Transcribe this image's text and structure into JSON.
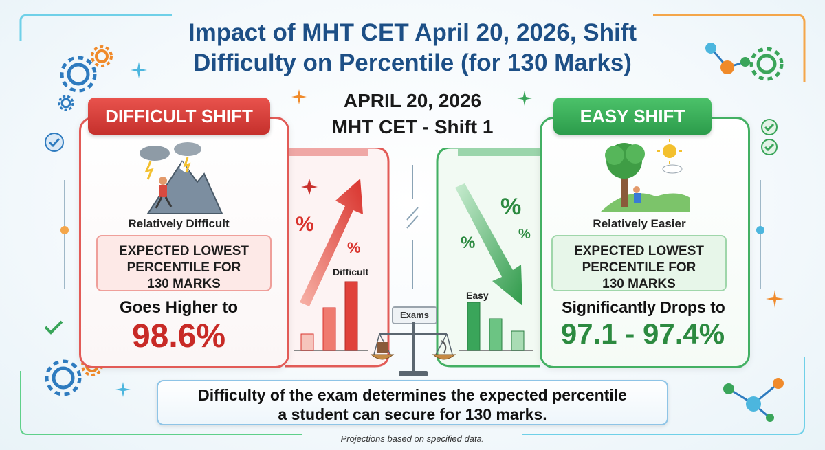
{
  "title": {
    "line1": "Impact of MHT CET April 20, 2026, Shift",
    "line2": "Difficulty on Percentile (for 130 Marks)"
  },
  "header": {
    "date": "APRIL 20, 2026",
    "shift": "MHT CET - Shift 1"
  },
  "difficult": {
    "ribbon": "DIFFICULT SHIFT",
    "level": "Relatively Difficult",
    "box_line1": "EXPECTED LOWEST",
    "box_line2": "PERCENTILE FOR",
    "box_line3": "130 MARKS",
    "trend": "Goes Higher to",
    "value": "98.6%",
    "chart_label": "Difficult",
    "percent_symbol": "%"
  },
  "easy": {
    "ribbon": "EASY SHIFT",
    "level": "Relatively Easier",
    "box_line1": "EXPECTED LOWEST",
    "box_line2": "PERCENTILE FOR",
    "box_line3": "130 MARKS",
    "trend": "Significantly Drops to",
    "value": "97.1 - 97.4%",
    "chart_label": "Easy",
    "percent_symbol": "%"
  },
  "center": {
    "scale_label": "Exams"
  },
  "banner": {
    "line1": "Difficulty of the exam determines the expected percentile",
    "line2": "a student can secure for 130 marks."
  },
  "footnote": "Projections based on specified data.",
  "colors": {
    "difficult_red": "#c82a26",
    "easy_green": "#2c8a40",
    "title_blue": "#1d4f86"
  }
}
